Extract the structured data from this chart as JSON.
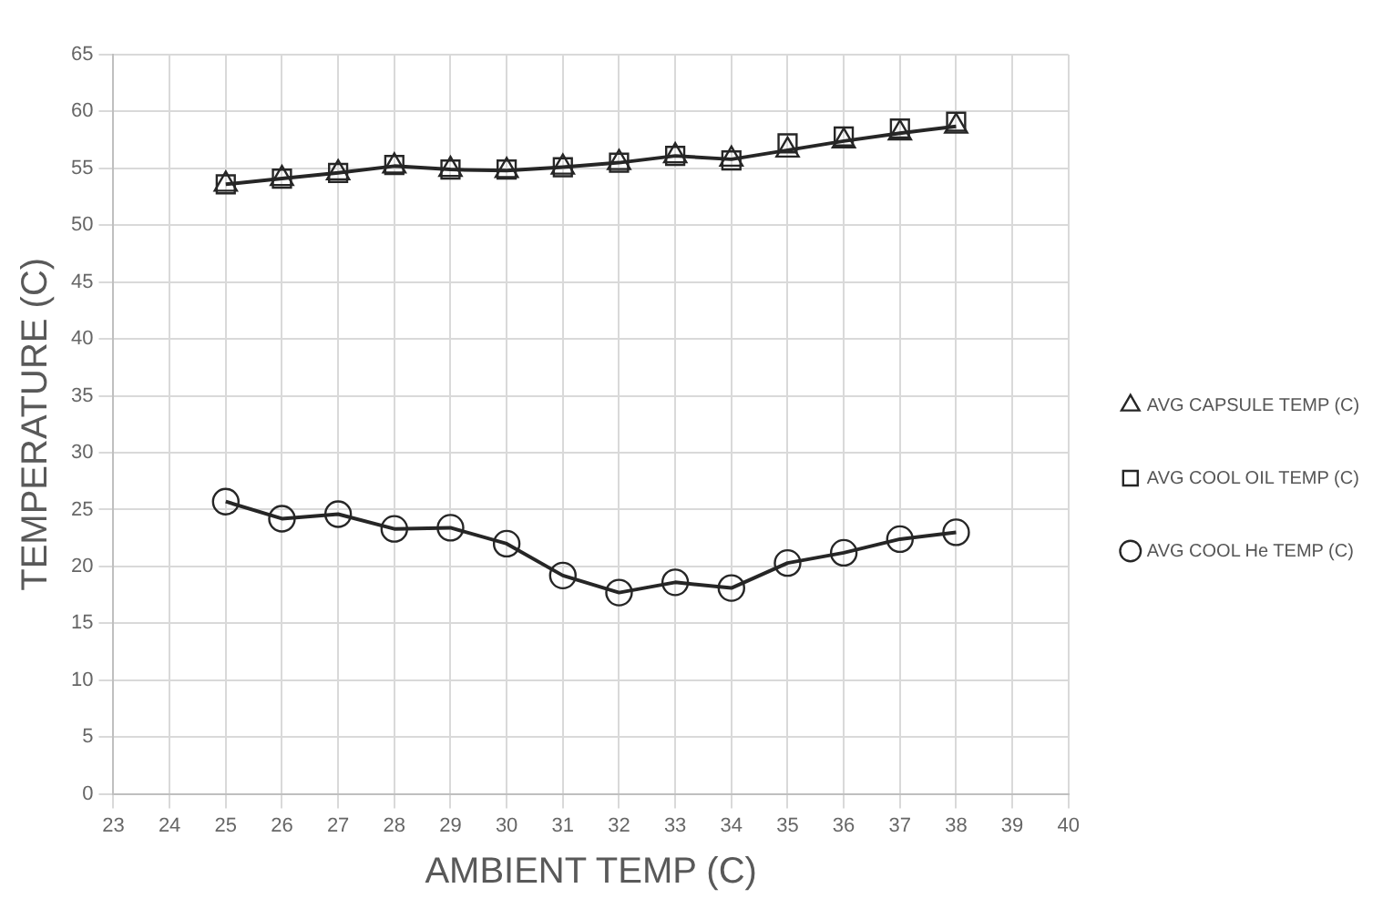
{
  "chart_data": {
    "type": "line",
    "xlabel": "AMBIENT TEMP (C)",
    "ylabel": "TEMPERATURE (C)",
    "xlim": [
      23,
      40
    ],
    "xticks": [
      23,
      24,
      25,
      26,
      27,
      28,
      29,
      30,
      31,
      32,
      33,
      34,
      35,
      36,
      37,
      38,
      39,
      40
    ],
    "ylim": [
      0,
      65
    ],
    "yticks": [
      0,
      5,
      10,
      15,
      20,
      25,
      30,
      35,
      40,
      45,
      50,
      55,
      60,
      65
    ],
    "grid": true,
    "legend": "right",
    "x": [
      25,
      26,
      27,
      28,
      29,
      30,
      31,
      32,
      33,
      34,
      35,
      36,
      37,
      38
    ],
    "series": [
      {
        "name": "AVG CAPSULE TEMP (C)",
        "type": "line",
        "marker": "triangle",
        "color": "#262626",
        "values": [
          53.6,
          54.1,
          54.6,
          55.2,
          54.9,
          54.8,
          55.1,
          55.5,
          56.1,
          55.8,
          56.6,
          57.4,
          58.1,
          58.7
        ]
      },
      {
        "name": "AVG COOL OIL TEMP (C)",
        "type": "scatter",
        "marker": "square",
        "color": "#262626",
        "values": [
          53.6,
          54.1,
          54.6,
          55.3,
          54.9,
          54.9,
          55.1,
          55.5,
          56.1,
          55.7,
          57.2,
          57.8,
          58.5,
          59.1
        ]
      },
      {
        "name": "AVG COOL He TEMP (C)",
        "type": "line",
        "marker": "circle",
        "color": "#262626",
        "values": [
          25.7,
          24.2,
          24.6,
          23.3,
          23.4,
          22.0,
          19.2,
          17.7,
          18.6,
          18.1,
          20.3,
          21.2,
          22.4,
          23.0
        ]
      }
    ]
  }
}
